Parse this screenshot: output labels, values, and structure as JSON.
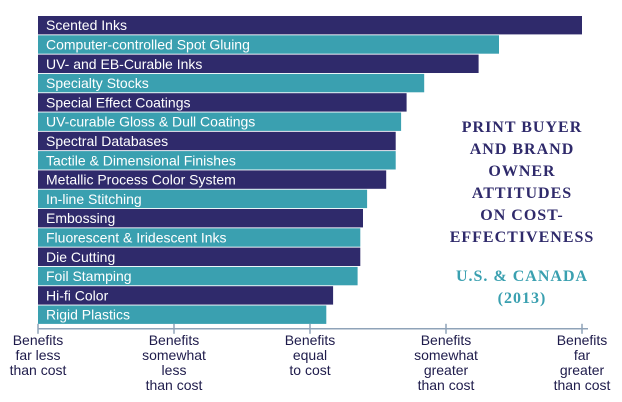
{
  "chart_data": {
    "type": "bar",
    "orientation": "horizontal",
    "title": [
      "PRINT BUYER",
      "AND BRAND",
      "OWNER",
      "ATTITUDES",
      "ON COST-",
      "EFFECTIVENESS"
    ],
    "subtitle": [
      "U.S. & CANADA",
      "(2013)"
    ],
    "categories": [
      "Scented Inks",
      "Computer-controlled Spot Gluing",
      "UV- and EB-Curable Inks",
      "Specialty Stocks",
      "Special Effect Coatings",
      "UV-curable Gloss & Dull Coatings",
      "Spectral Databases",
      "Tactile & Dimensional Finishes",
      "Metallic Process Color System",
      "In-line Stitching",
      "Embossing",
      "Fluorescent & Iridescent Inks",
      "Die Cutting",
      "Foil Stamping",
      "Hi-fi Color",
      "Rigid Plastics"
    ],
    "values": [
      5.0,
      4.39,
      4.24,
      3.84,
      3.71,
      3.67,
      3.63,
      3.63,
      3.56,
      3.42,
      3.39,
      3.37,
      3.37,
      3.35,
      3.17,
      3.12
    ],
    "xlim": [
      1,
      5
    ],
    "x_ticks": [
      {
        "value": 1,
        "lines": [
          "Benefits",
          "far less",
          "than cost"
        ]
      },
      {
        "value": 2,
        "lines": [
          "Benefits",
          "somewhat",
          "less",
          "than cost"
        ]
      },
      {
        "value": 3,
        "lines": [
          "Benefits",
          "equal",
          "to cost"
        ]
      },
      {
        "value": 4,
        "lines": [
          "Benefits",
          "somewhat",
          "greater",
          "than cost"
        ]
      },
      {
        "value": 5,
        "lines": [
          "Benefits",
          "far",
          "greater",
          "than cost"
        ]
      }
    ],
    "colors": {
      "bar_dark": "#2f2a6b",
      "bar_light": "#3aa0b0",
      "axis": "#8fa3b8",
      "title": "#2f2a6b",
      "subtitle": "#3aa0b0"
    },
    "grid": false,
    "legend": "none"
  }
}
